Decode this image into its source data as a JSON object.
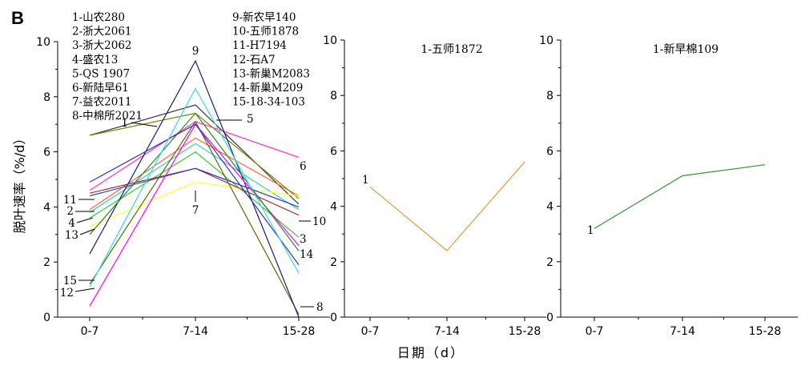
{
  "figure": {
    "panel_label": "B",
    "ylabel": "脱叶速率（%/d）",
    "xlabel": "日期（d）"
  },
  "chart_data": [
    {
      "type": "line",
      "categories": [
        "0-7",
        "7-14",
        "15-28"
      ],
      "ylim": [
        0,
        10
      ],
      "yticks": [
        "0",
        "2",
        "4",
        "6",
        "8",
        "10"
      ],
      "legend_left": [
        "1-山农280",
        "2-浙大2061",
        "3-浙大2062",
        "4-盛农13",
        "5-QS 1907",
        "6-新陆早61",
        "7-益农2011",
        "8-中棉所2021"
      ],
      "legend_right": [
        "9-新农早140",
        "10-五师1878",
        "11-H7194",
        "12-石A7",
        "13-新巢M2083",
        "14-新巢M209",
        "15-18-34-103"
      ],
      "series": [
        {
          "name": "1",
          "values": [
            6.6,
            7.7,
            4.1
          ],
          "color": "#333333"
        },
        {
          "name": "2",
          "values": [
            3.9,
            6.5,
            4.4
          ],
          "color": "#ff6633"
        },
        {
          "name": "3",
          "values": [
            3.6,
            6.0,
            2.9
          ],
          "color": "#33cc33"
        },
        {
          "name": "4",
          "values": [
            3.8,
            6.3,
            3.9
          ],
          "color": "#33cccc"
        },
        {
          "name": "5",
          "values": [
            6.6,
            7.4,
            4.3
          ],
          "color": "#808000"
        },
        {
          "name": "6",
          "values": [
            4.6,
            7.1,
            5.8
          ],
          "color": "#ff33cc"
        },
        {
          "name": "7",
          "values": [
            3.3,
            4.9,
            4.4
          ],
          "color": "#ffff33"
        },
        {
          "name": "8",
          "values": [
            1.2,
            7.1,
            0.1
          ],
          "color": "#666600"
        },
        {
          "name": "9",
          "values": [
            2.3,
            9.3,
            0.0
          ],
          "color": "#1a1a80"
        },
        {
          "name": "10",
          "values": [
            4.5,
            5.4,
            3.7
          ],
          "color": "#993333"
        },
        {
          "name": "11",
          "values": [
            4.4,
            5.4,
            4.0
          ],
          "color": "#3333cc"
        },
        {
          "name": "12",
          "values": [
            0.4,
            7.0,
            2.6
          ],
          "color": "#ff00ff"
        },
        {
          "name": "13",
          "values": [
            3.0,
            7.4,
            2.4
          ],
          "color": "#228b22"
        },
        {
          "name": "14",
          "values": [
            4.9,
            7.0,
            1.9
          ],
          "color": "#3333bb"
        },
        {
          "name": "15",
          "values": [
            1.1,
            8.3,
            1.6
          ],
          "color": "#33dddd"
        }
      ],
      "annotations": [
        {
          "text": "9",
          "series": "9",
          "at": "7-14"
        },
        {
          "text": "1",
          "series": "1",
          "at": "0-7"
        },
        {
          "text": "5",
          "series": "5",
          "at": "7-14"
        },
        {
          "text": "6",
          "series": "6",
          "at": "15-28"
        },
        {
          "text": "7",
          "series": "7",
          "at": "7-14"
        },
        {
          "text": "10",
          "series": "10",
          "at": "15-28"
        },
        {
          "text": "3",
          "series": "3",
          "at": "15-28"
        },
        {
          "text": "14",
          "series": "14",
          "at": "15-28"
        },
        {
          "text": "8",
          "series": "8",
          "at": "15-28"
        },
        {
          "text": "11",
          "series": "11",
          "at": "0-7"
        },
        {
          "text": "2",
          "series": "2",
          "at": "0-7"
        },
        {
          "text": "4",
          "series": "4",
          "at": "0-7"
        },
        {
          "text": "13",
          "series": "13",
          "at": "0-7"
        },
        {
          "text": "15",
          "series": "15",
          "at": "0-7"
        },
        {
          "text": "12",
          "series": "12",
          "at": "0-7"
        }
      ]
    },
    {
      "type": "line",
      "title": "1-五师1872",
      "categories": [
        "0-7",
        "7-14",
        "15-28"
      ],
      "ylim": [
        0,
        10
      ],
      "yticks": [
        "0",
        "2",
        "4",
        "6",
        "8",
        "10"
      ],
      "series": [
        {
          "name": "1",
          "values": [
            4.7,
            2.4,
            5.6
          ],
          "color": "#e69a3c"
        }
      ]
    },
    {
      "type": "line",
      "title": "1-新早棉109",
      "categories": [
        "0-7",
        "7-14",
        "15-28"
      ],
      "ylim": [
        0,
        10
      ],
      "yticks": [
        "0",
        "2",
        "4",
        "6",
        "8",
        "10"
      ],
      "series": [
        {
          "name": "1",
          "values": [
            3.2,
            5.1,
            5.5
          ],
          "color": "#339933"
        }
      ]
    }
  ]
}
